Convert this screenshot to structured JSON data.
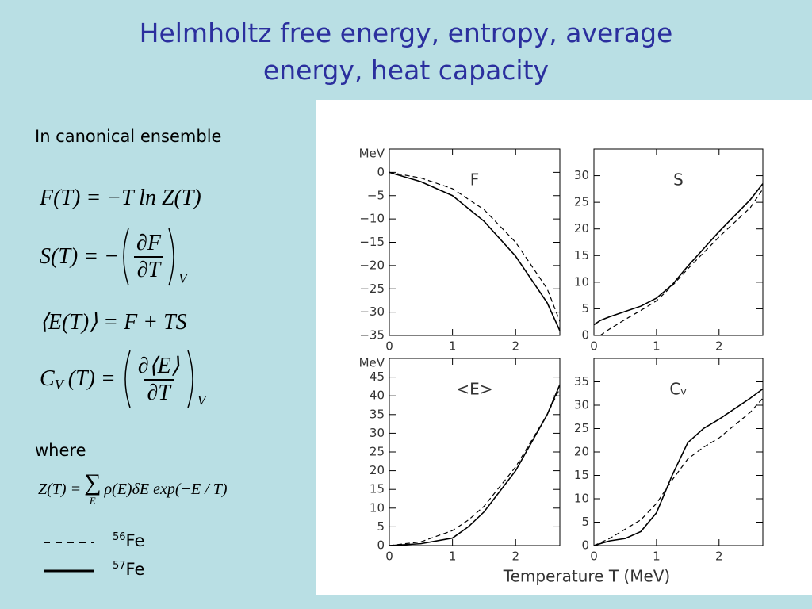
{
  "slide": {
    "title_lines": [
      "Helmholtz free energy, entropy, average",
      "energy, heat capacity"
    ],
    "subtitle": "In canonical ensemble",
    "formula_f": "F(T) = −T ln Z(T)",
    "formula_s": {
      "lhs": "S(T) = −",
      "num": "∂F",
      "den": "∂T",
      "sub": "V"
    },
    "formula_e": "⟨E(T)⟩ = F + TS",
    "formula_c": {
      "lhs": "C",
      "lhs_sub": "V",
      "lhs_rest": "(T) =",
      "num": "∂⟨E⟩",
      "den": "∂T",
      "sub": "V"
    },
    "where": "where",
    "partition": {
      "lhs": "Z(T) =",
      "sum": "∑",
      "sum_sub": "E",
      "rhs": "ρ(E)δE exp(−E / T)"
    },
    "legend": [
      {
        "mass": "56",
        "element": "Fe",
        "dash": true
      },
      {
        "mass": "57",
        "element": "Fe",
        "dash": false
      }
    ],
    "x_axis_label": "Temperature T (MeV)"
  },
  "chart_data": [
    {
      "type": "line",
      "panel_label": "F",
      "ylabel": "MeV",
      "x": [
        0,
        0.5,
        1,
        1.5,
        2,
        2.5,
        2.7
      ],
      "xlim": [
        0,
        2.7
      ],
      "xticks": [
        0,
        1,
        2
      ],
      "ylim": [
        -35,
        5
      ],
      "yticks": [
        {
          "value": -35,
          "label": "−35"
        },
        {
          "value": -30,
          "label": "−30"
        },
        {
          "value": -25,
          "label": "−25"
        },
        {
          "value": -20,
          "label": "−20"
        },
        {
          "value": -15,
          "label": "−15"
        },
        {
          "value": -10,
          "label": "−10"
        },
        {
          "value": -5,
          "label": "−5"
        },
        0
      ],
      "series": [
        {
          "color": "#000000",
          "dash": true,
          "values": [
            0,
            -1.2,
            -3.5,
            -8,
            -15,
            -25,
            -32
          ]
        },
        {
          "color": "#000000",
          "dash": false,
          "values": [
            0,
            -2,
            -5,
            -10.5,
            -18,
            -28,
            -34
          ]
        }
      ]
    },
    {
      "type": "line",
      "panel_label": "S",
      "x": [
        0,
        0.1,
        0.25,
        0.5,
        0.75,
        1,
        1.25,
        1.5,
        2,
        2.5,
        2.7
      ],
      "xlim": [
        0,
        2.7
      ],
      "xticks": [
        0,
        1,
        2
      ],
      "ylim": [
        0,
        35
      ],
      "yticks": [
        0,
        5,
        10,
        15,
        20,
        25,
        30
      ],
      "series": [
        {
          "color": "#000000",
          "dash": true,
          "values": [
            null,
            0,
            1.2,
            3,
            4.7,
            6.5,
            9.3,
            12.5,
            18.5,
            24,
            27.5
          ]
        },
        {
          "color": "#000000",
          "dash": false,
          "values": [
            2,
            2.8,
            3.5,
            4.5,
            5.5,
            7,
            9.5,
            13,
            19.5,
            25.5,
            28.5
          ]
        }
      ]
    },
    {
      "type": "line",
      "panel_label": "<E>",
      "ylabel": "MeV",
      "x": [
        0,
        0.5,
        1,
        1.25,
        1.5,
        2,
        2.5,
        2.7
      ],
      "xlim": [
        0,
        2.7
      ],
      "xticks": [
        0,
        1,
        2
      ],
      "ylim": [
        0,
        50
      ],
      "yticks": [
        0,
        5,
        10,
        15,
        20,
        25,
        30,
        35,
        40,
        45
      ],
      "series": [
        {
          "color": "#000000",
          "dash": true,
          "values": [
            0,
            1,
            4,
            6.8,
            10.5,
            21,
            35,
            42
          ]
        },
        {
          "color": "#000000",
          "dash": false,
          "values": [
            0,
            0.5,
            2,
            5,
            9,
            20,
            35,
            43
          ]
        }
      ]
    },
    {
      "type": "line",
      "panel_label": "Cᵥ",
      "x": [
        0,
        0.25,
        0.5,
        0.75,
        1,
        1.25,
        1.5,
        1.75,
        2,
        2.5,
        2.7
      ],
      "xlim": [
        0,
        2.7
      ],
      "xticks": [
        0,
        1,
        2
      ],
      "ylim": [
        0,
        40
      ],
      "yticks": [
        0,
        5,
        10,
        15,
        20,
        25,
        30,
        35
      ],
      "series": [
        {
          "color": "#000000",
          "dash": true,
          "values": [
            0,
            1.5,
            3.5,
            5.5,
            9,
            14,
            18.5,
            21,
            23,
            28.5,
            31.5
          ]
        },
        {
          "color": "#000000",
          "dash": false,
          "values": [
            0,
            1,
            1.5,
            3,
            7,
            15,
            22,
            25,
            27,
            31.5,
            33.5
          ]
        }
      ]
    }
  ]
}
